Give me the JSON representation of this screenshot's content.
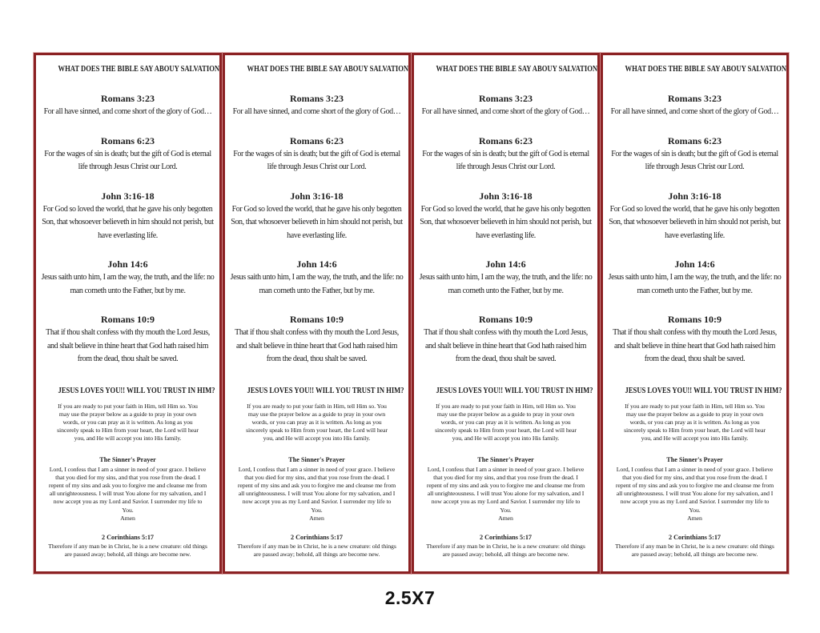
{
  "page": {
    "size_label": "2.5X7",
    "border_color": "#8b2123",
    "card_count": 4
  },
  "card": {
    "title": "WHAT DOES THE BIBLE SAY ABOUY SALVATION?",
    "verses": [
      {
        "ref": "Romans 3:23",
        "text": "For all have sinned, and come short of the glory of God…"
      },
      {
        "ref": "Romans 6:23",
        "text": "For the wages of sin is death; but the gift of God is eternal life through Jesus Christ our Lord."
      },
      {
        "ref": "John 3:16-18",
        "text": "For God so loved the world, that he gave his only begotten Son, that whosoever believeth in him should not perish, but have everlasting life."
      },
      {
        "ref": "John 14:6",
        "text": "Jesus saith unto him, I am the way, the truth, and the life: no man cometh unto the Father, but by me."
      },
      {
        "ref": "Romans 10:9",
        "text": "That if thou shalt confess with thy mouth the Lord Jesus, and shalt believe in thine heart that God hath raised him from the dead, thou shalt be saved."
      }
    ],
    "invitation": {
      "headline": "JESUS LOVES YOU!! WILL YOU TRUST IN HIM?",
      "intro": "If you are ready to put your faith in Him, tell Him so. You may use the prayer below as a guide to pray in your own words, or you can pray as it is written. As long as you sincerely speak to Him from your heart, the Lord will hear you, and He will accept you into His family."
    },
    "prayer": {
      "heading": "The Sinner's Prayer",
      "text": "Lord, I confess that I am a sinner in need of your grace. I believe that you died for my sins, and that you rose from the dead. I repent of my sins and ask you to forgive me and cleanse me from all unrighteousness. I will trust You alone for my salvation, and I now accept you as my Lord and Savior. I surrender my life to You.",
      "amen": "Amen"
    },
    "closing": {
      "ref": "2 Corinthians 5:17",
      "text": "Therefore if any man be in Christ, he is a new creature: old things are passed away; behold, all things are become new."
    }
  }
}
